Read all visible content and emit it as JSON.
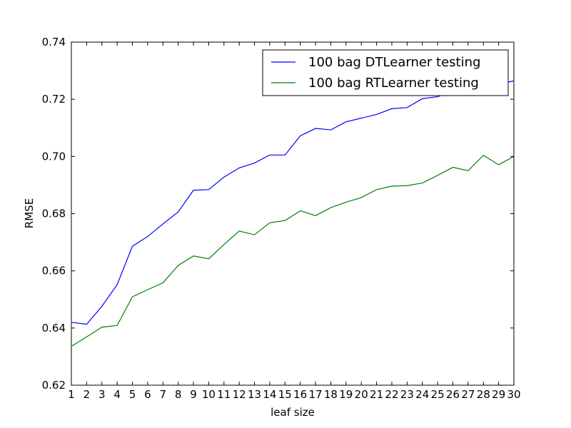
{
  "chart_data": {
    "type": "line",
    "title": "",
    "xlabel": "leaf size",
    "ylabel": "RMSE",
    "xlim": [
      1,
      30
    ],
    "ylim": [
      0.62,
      0.74
    ],
    "grid": false,
    "legend_position": "top-right",
    "x": [
      1,
      2,
      3,
      4,
      5,
      6,
      7,
      8,
      9,
      10,
      11,
      12,
      13,
      14,
      15,
      16,
      17,
      18,
      19,
      20,
      21,
      22,
      23,
      24,
      25,
      26,
      27,
      28,
      29,
      30
    ],
    "x_tick_labels": [
      "1",
      "2",
      "3",
      "4",
      "5",
      "6",
      "7",
      "8",
      "9",
      "10",
      "11",
      "12",
      "13",
      "14",
      "15",
      "16",
      "17",
      "18",
      "19",
      "20",
      "21",
      "22",
      "23",
      "24",
      "25",
      "26",
      "27",
      "28",
      "29",
      "30"
    ],
    "y_ticks": [
      0.62,
      0.64,
      0.66,
      0.68,
      0.7,
      0.72,
      0.74
    ],
    "y_tick_labels": [
      "0.62",
      "0.64",
      "0.66",
      "0.68",
      "0.70",
      "0.72",
      "0.74"
    ],
    "series": [
      {
        "name": "100 bag DTLearner testing",
        "color": "#0000ff",
        "values": [
          0.642,
          0.6413,
          0.6476,
          0.6552,
          0.6686,
          0.672,
          0.6764,
          0.6806,
          0.6882,
          0.6884,
          0.6928,
          0.696,
          0.6977,
          0.7005,
          0.7005,
          0.7072,
          0.7098,
          0.7093,
          0.7121,
          0.7134,
          0.7147,
          0.7167,
          0.7171,
          0.7202,
          0.7209,
          0.7227,
          0.7241,
          0.7246,
          0.7254,
          0.7264
        ]
      },
      {
        "name": "100 bag RTLearner testing",
        "color": "#008000",
        "values": [
          0.6336,
          0.6369,
          0.6403,
          0.6409,
          0.6509,
          0.6534,
          0.6558,
          0.6619,
          0.6652,
          0.6642,
          0.6692,
          0.6739,
          0.6726,
          0.6768,
          0.6776,
          0.681,
          0.6793,
          0.6821,
          0.684,
          0.6856,
          0.6884,
          0.6896,
          0.6898,
          0.6907,
          0.6934,
          0.6962,
          0.695,
          0.7004,
          0.6971,
          0.7
        ]
      }
    ]
  }
}
